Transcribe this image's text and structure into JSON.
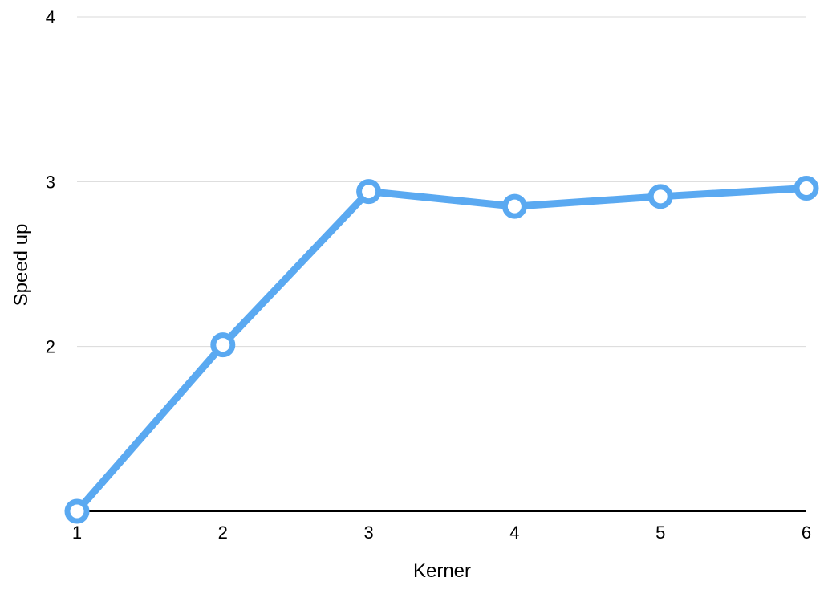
{
  "chart_data": {
    "type": "line",
    "xlabel": "Kerner",
    "ylabel": "Speed up",
    "x": [
      1,
      2,
      3,
      4,
      5,
      6
    ],
    "series": [
      {
        "values": [
          1.0,
          2.01,
          2.94,
          2.85,
          2.91,
          2.96
        ],
        "color": "#5AA9F1"
      }
    ],
    "xlim": [
      1,
      6
    ],
    "ylim": [
      1,
      4
    ],
    "x_ticks": [
      "1",
      "2",
      "3",
      "4",
      "5",
      "6"
    ],
    "y_ticks": [
      "2",
      "3",
      "4"
    ],
    "grid": "horizontal",
    "gridline_color": "#d9d9d9",
    "baseline_color": "#000000",
    "marker": "hollow-circle"
  }
}
